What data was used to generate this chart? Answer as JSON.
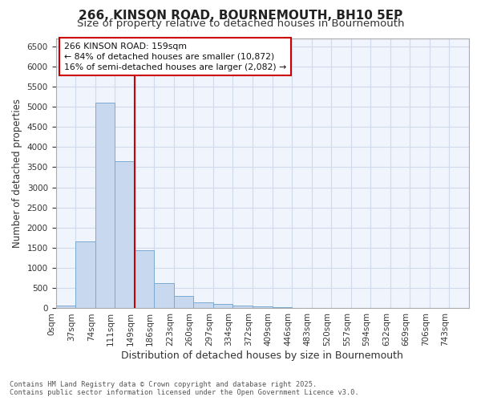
{
  "title_line1": "266, KINSON ROAD, BOURNEMOUTH, BH10 5EP",
  "title_line2": "Size of property relative to detached houses in Bournemouth",
  "xlabel": "Distribution of detached houses by size in Bournemouth",
  "ylabel": "Number of detached properties",
  "bar_color": "#c8d8ee",
  "bar_edge_color": "#7aaad0",
  "categories": [
    "0sqm",
    "37sqm",
    "74sqm",
    "111sqm",
    "149sqm",
    "186sqm",
    "223sqm",
    "260sqm",
    "297sqm",
    "334sqm",
    "372sqm",
    "409sqm",
    "446sqm",
    "483sqm",
    "520sqm",
    "557sqm",
    "594sqm",
    "632sqm",
    "669sqm",
    "706sqm",
    "743sqm"
  ],
  "values": [
    65,
    1660,
    5100,
    3650,
    1440,
    620,
    305,
    155,
    110,
    75,
    50,
    30,
    10,
    5,
    2,
    2,
    1,
    1,
    0,
    0,
    0
  ],
  "vline_x": 4.0,
  "vline_color": "#cc0000",
  "annotation_text": "266 KINSON ROAD: 159sqm\n← 84% of detached houses are smaller (10,872)\n16% of semi-detached houses are larger (2,082) →",
  "annotation_box_color": "#ffffff",
  "annotation_border_color": "#cc0000",
  "footnote": "Contains HM Land Registry data © Crown copyright and database right 2025.\nContains public sector information licensed under the Open Government Licence v3.0.",
  "ylim": [
    0,
    6700
  ],
  "yticks": [
    0,
    500,
    1000,
    1500,
    2000,
    2500,
    3000,
    3500,
    4000,
    4500,
    5000,
    5500,
    6000,
    6500
  ],
  "grid_color": "#d0daea",
  "background_color": "#ffffff",
  "plot_bg_color": "#f0f4fc",
  "title_fontsize": 11,
  "subtitle_fontsize": 9.5,
  "tick_fontsize": 7.5,
  "ylabel_fontsize": 8.5,
  "xlabel_fontsize": 9
}
